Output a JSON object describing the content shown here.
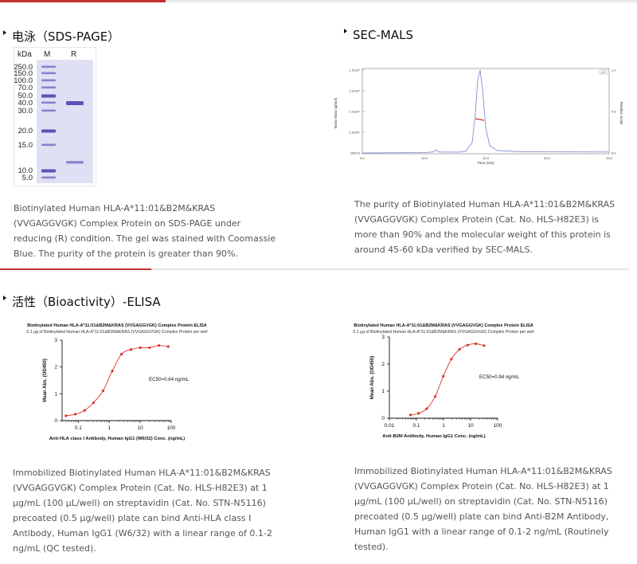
{
  "colors": {
    "accent": "#c0312d",
    "gel_bg": "#dfe0f3",
    "band": "#6a5fc0",
    "curve": "#d9332a"
  },
  "sections": {
    "sds": {
      "title": "电泳（SDS-PAGE）",
      "gel": {
        "col_kda": "kDa",
        "col_m": "M",
        "col_r": "R",
        "ladder": [
          "250.0",
          "150.0",
          "100.0",
          "70.0",
          "50.0",
          "40.0",
          "30.0",
          "20.0",
          "15.0",
          "10.0",
          "5.0"
        ]
      },
      "desc": [
        "Biotinylated Human HLA-A*11:01&B2M&KRAS",
        "(VVGAGGVGK) Complex Protein on SDS-PAGE under",
        "reducing (R) condition. The gel was stained with Coomassie",
        "Blue. The purity of the protein is greater than 90%."
      ]
    },
    "mals": {
      "title": "SEC-MALS",
      "ylabel": "Molar Mass (g/mol)",
      "y2label": "Relative Scale",
      "xlabel": "Time (min)",
      "yticks": [
        "1.0x10⁷",
        "1.0x10⁶",
        "1.0x10⁵",
        "1.0x10⁴",
        "1000.0"
      ],
      "xticks": [
        "5.0",
        "10.0",
        "15.0",
        "20.0",
        "25.0"
      ],
      "y2ticks": [
        "1.0",
        "0.5",
        "0.0"
      ],
      "legend": "LS",
      "desc": [
        "The purity of Biotinylated Human HLA-A*11:01&B2M&KRAS",
        "(VVGAGGVGK) Complex Protein (Cat. No. HLS-H82E3) is",
        "more than 90% and the molecular weight of this protein is",
        "around 45-60 kDa verified by SEC-MALS."
      ]
    },
    "elisa": {
      "title": "活性（Bioactivity）-ELISA",
      "left_desc": [
        "Immobilized Biotinylated Human HLA-A*11:01&B2M&KRAS",
        "(VVGAGGVGK) Complex Protein (Cat. No. HLS-H82E3) at 1",
        "μg/mL (100 μL/well) on streptavidin (Cat. No. STN-N5116)",
        "precoated (0.5 μg/well) plate can bind Anti-HLA class I",
        "Antibody, Human IgG1 (W6/32) with a linear range of 0.1-2",
        "ng/mL (QC tested)."
      ],
      "right_desc": [
        "Immobilized Biotinylated Human HLA-A*11:01&B2M&KRAS",
        "(VVGAGGVGK) Complex Protein (Cat. No. HLS-H82E3) at 1",
        "μg/mL (100 μL/well) on streptavidin (Cat. No. STN-N5116)",
        "precoated (0.5 μg/well) plate can bind Anti-B2M Antibody,",
        "Human IgG1 with a linear range of 0.1-2 ng/mL (Routinely",
        "tested)."
      ]
    }
  },
  "chart_data": [
    {
      "type": "line",
      "title": "Biotinylated Human HLA-A*11:01&B2M&KRAS (VVGAGGVGK) Complex Protein ELISA",
      "subtitle": "0.1 μg of Biotinylated Human HLA-A*11:01&B2M&KRAS (VVGAGGVGK) Complex Protein per well",
      "xlabel": "Anti-HLA class I Antibody, Human IgG1 (W6/32) Conc. (ng/mL)",
      "ylabel": "Mean Abs. (OD450)",
      "xscale": "log",
      "xlim": [
        0.03,
        100
      ],
      "ylim": [
        0,
        3
      ],
      "xticks": [
        0.1,
        1,
        10,
        100
      ],
      "yticks": [
        0,
        1,
        2,
        3
      ],
      "xtick_labels": [
        "0.1",
        "1",
        "10",
        "100"
      ],
      "ytick_labels": [
        "0",
        "1",
        "2",
        "3"
      ],
      "annotation": "EC50=0.64 ng/mL",
      "x": [
        0.04,
        0.08,
        0.16,
        0.31,
        0.63,
        1.25,
        2.5,
        5,
        10,
        20,
        40,
        80
      ],
      "y": [
        0.18,
        0.24,
        0.38,
        0.67,
        1.11,
        1.85,
        2.48,
        2.65,
        2.72,
        2.72,
        2.8,
        2.76
      ]
    },
    {
      "type": "line",
      "title": "Biotinylated Human HLA-A*11:01&B2M&KRAS (VVGAGGVGK) Complex Protein ELISA",
      "subtitle": "0.1 μg of Biotinylated Human HLA-A*11:01&B2M&KRAS (VVGAGGVGK) Complex Protein per well",
      "xlabel": "Anti-B2M Antibody, Human IgG1 Conc. (ng/mL)",
      "ylabel": "Mean Abs. (OD450)",
      "xscale": "log",
      "xlim": [
        0.01,
        100
      ],
      "ylim": [
        0,
        3
      ],
      "xticks": [
        0.01,
        0.1,
        1,
        10,
        100
      ],
      "yticks": [
        0,
        1,
        2,
        3
      ],
      "xtick_labels": [
        "0.01",
        "0.1",
        "1",
        "10",
        "100"
      ],
      "ytick_labels": [
        "0",
        "1",
        "2",
        "3"
      ],
      "annotation": "EC50=0.94 ng/mL",
      "x": [
        0.06,
        0.12,
        0.24,
        0.49,
        0.98,
        1.95,
        3.9,
        7.8,
        15.6,
        31.3
      ],
      "y": [
        0.12,
        0.18,
        0.35,
        0.8,
        1.55,
        2.18,
        2.54,
        2.7,
        2.75,
        2.68
      ]
    }
  ]
}
